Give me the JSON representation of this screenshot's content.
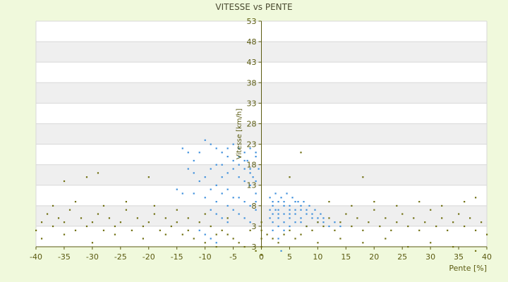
{
  "chart_data": {
    "type": "scatter",
    "title": "VITESSE vs PENTE",
    "xlabel": "Pente [%]",
    "ylabel": "Vitesse [km/h]",
    "xlim": [
      -40,
      40
    ],
    "ylim_labels_top_to_bottom": [
      "53",
      "48",
      "43",
      "38",
      "33",
      "28",
      "23",
      "18",
      "13",
      "8",
      "3",
      "3"
    ],
    "x_ticks": [
      -40,
      -35,
      -30,
      -25,
      -20,
      -15,
      -10,
      -5,
      0,
      5,
      10,
      15,
      20,
      25,
      30,
      35,
      40
    ],
    "grid": true,
    "alternating_bands": true,
    "colors": {
      "background": "#f0f9dc",
      "plot_band_light": "#ffffff",
      "plot_band_dark": "#efefef",
      "axis_text": "#5a5a10",
      "title_text": "#4a4a30",
      "series_blue": "#3d8fdc",
      "series_olive": "#6f6f10"
    },
    "series": [
      {
        "color": "#3d8fdc",
        "points": [
          [
            -14,
            27
          ],
          [
            -13,
            26
          ],
          [
            -12,
            24
          ],
          [
            -11,
            26
          ],
          [
            -10,
            29
          ],
          [
            -9,
            28
          ],
          [
            -8,
            27
          ],
          [
            -7,
            26
          ],
          [
            -6,
            27
          ],
          [
            -5,
            28
          ],
          [
            -4,
            27
          ],
          [
            -3,
            26
          ],
          [
            -2.5,
            24
          ],
          [
            -2,
            22
          ],
          [
            -1.5,
            20
          ],
          [
            -1,
            25
          ],
          [
            -0.5,
            22
          ],
          [
            -13,
            22
          ],
          [
            -12,
            21
          ],
          [
            -11,
            19
          ],
          [
            -10,
            20
          ],
          [
            -9,
            17
          ],
          [
            -8,
            18
          ],
          [
            -7,
            16
          ],
          [
            -6,
            17
          ],
          [
            -5,
            15
          ],
          [
            -4,
            15
          ],
          [
            -3,
            14
          ],
          [
            -2,
            13
          ],
          [
            -1,
            12
          ],
          [
            -9,
            12
          ],
          [
            -8,
            11
          ],
          [
            -7,
            10
          ],
          [
            -6,
            9
          ],
          [
            -5,
            12
          ],
          [
            -4,
            11
          ],
          [
            -3,
            10
          ],
          [
            -2,
            9
          ],
          [
            -1,
            16
          ],
          [
            -15,
            17
          ],
          [
            -14,
            16
          ],
          [
            -12,
            16
          ],
          [
            -10,
            15
          ],
          [
            -8,
            14
          ],
          [
            -6,
            13
          ],
          [
            -4,
            20
          ],
          [
            -3,
            19
          ],
          [
            -2,
            18
          ],
          [
            -1,
            14
          ],
          [
            -11,
            7
          ],
          [
            -10,
            6
          ],
          [
            -9,
            5
          ],
          [
            -8,
            4
          ],
          [
            -6,
            21
          ],
          [
            -5,
            22
          ],
          [
            -4,
            23
          ],
          [
            -3,
            22
          ],
          [
            -2,
            21
          ],
          [
            -1,
            19
          ],
          [
            -7,
            23
          ],
          [
            -6,
            25
          ],
          [
            -5,
            24
          ],
          [
            -4,
            25
          ],
          [
            -3,
            24
          ],
          [
            -2,
            27
          ],
          [
            -1,
            26
          ],
          [
            -9,
            22
          ],
          [
            -8,
            23
          ],
          [
            -7,
            20
          ],
          [
            2,
            11
          ],
          [
            2,
            14
          ],
          [
            2,
            13
          ],
          [
            3,
            10
          ],
          [
            3,
            12
          ],
          [
            3,
            11
          ],
          [
            3,
            14
          ],
          [
            4,
            9
          ],
          [
            4,
            11
          ],
          [
            4,
            13
          ],
          [
            4,
            14
          ],
          [
            5,
            8
          ],
          [
            5,
            10
          ],
          [
            5,
            12
          ],
          [
            5,
            13
          ],
          [
            6,
            9
          ],
          [
            6,
            11
          ],
          [
            6,
            12
          ],
          [
            6,
            14
          ],
          [
            7,
            9
          ],
          [
            7,
            10
          ],
          [
            7,
            12
          ],
          [
            7,
            13
          ],
          [
            8,
            8
          ],
          [
            8,
            11
          ],
          [
            8,
            12
          ],
          [
            9,
            10
          ],
          [
            9,
            11
          ],
          [
            10,
            9
          ],
          [
            10,
            10
          ],
          [
            11,
            10
          ],
          [
            11,
            9
          ],
          [
            12,
            8
          ],
          [
            13,
            9
          ],
          [
            14,
            8
          ],
          [
            1.5,
            15
          ],
          [
            2.5,
            16
          ],
          [
            3.5,
            15
          ],
          [
            4.5,
            16
          ],
          [
            5.5,
            15
          ],
          [
            6.5,
            14
          ],
          [
            7.5,
            14
          ],
          [
            8.5,
            13
          ],
          [
            9.5,
            12
          ],
          [
            10.5,
            11
          ],
          [
            2,
            9
          ],
          [
            3,
            8
          ],
          [
            4,
            7
          ],
          [
            3,
            5
          ],
          [
            3.5,
            2
          ],
          [
            2,
            7
          ],
          [
            1.5,
            12
          ],
          [
            1.5,
            10
          ],
          [
            2.5,
            12
          ],
          [
            5,
            11
          ]
        ]
      },
      {
        "color": "#6f6f10",
        "points": [
          [
            -40,
            7
          ],
          [
            -39,
            9
          ],
          [
            -38,
            11
          ],
          [
            -37,
            8
          ],
          [
            -36,
            10
          ],
          [
            -35,
            9
          ],
          [
            -34,
            12
          ],
          [
            -33,
            7
          ],
          [
            -32,
            10
          ],
          [
            -31,
            8
          ],
          [
            -30,
            9
          ],
          [
            -29,
            11
          ],
          [
            -28,
            7
          ],
          [
            -27,
            10
          ],
          [
            -26,
            8
          ],
          [
            -25,
            9
          ],
          [
            -24,
            12
          ],
          [
            -23,
            7
          ],
          [
            -22,
            10
          ],
          [
            -21,
            8
          ],
          [
            -20,
            9
          ],
          [
            -19,
            11
          ],
          [
            -18,
            7
          ],
          [
            -17,
            10
          ],
          [
            -16,
            8
          ],
          [
            -15,
            9
          ],
          [
            -14,
            6
          ],
          [
            -13,
            10
          ],
          [
            -12,
            5
          ],
          [
            -11,
            9
          ],
          [
            -10,
            4
          ],
          [
            -9,
            8
          ],
          [
            -8,
            3
          ],
          [
            -7,
            7
          ],
          [
            -6,
            6
          ],
          [
            -5,
            5
          ],
          [
            -4,
            4
          ],
          [
            -3,
            3
          ],
          [
            -2,
            7
          ],
          [
            -1,
            2
          ],
          [
            -37,
            13
          ],
          [
            -33,
            14
          ],
          [
            -28,
            13
          ],
          [
            -24,
            14
          ],
          [
            -19,
            13
          ],
          [
            -15,
            12
          ],
          [
            -10,
            11
          ],
          [
            -6,
            10
          ],
          [
            -39,
            5
          ],
          [
            -35,
            6
          ],
          [
            -30,
            4
          ],
          [
            -26,
            6
          ],
          [
            -21,
            5
          ],
          [
            -17,
            6
          ],
          [
            -13,
            7
          ],
          [
            -8,
            6
          ],
          [
            -31,
            20
          ],
          [
            -29,
            21
          ],
          [
            -35,
            19
          ],
          [
            -20,
            20
          ],
          [
            0,
            1
          ],
          [
            0,
            3
          ],
          [
            0,
            5
          ],
          [
            0,
            7
          ],
          [
            0,
            9
          ],
          [
            1,
            6
          ],
          [
            2,
            5
          ],
          [
            3,
            4
          ],
          [
            4,
            6
          ],
          [
            5,
            7
          ],
          [
            6,
            5
          ],
          [
            7,
            6
          ],
          [
            8,
            8
          ],
          [
            9,
            7
          ],
          [
            10,
            9
          ],
          [
            11,
            8
          ],
          [
            12,
            10
          ],
          [
            13,
            7
          ],
          [
            14,
            9
          ],
          [
            15,
            11
          ],
          [
            16,
            8
          ],
          [
            17,
            10
          ],
          [
            18,
            7
          ],
          [
            19,
            9
          ],
          [
            20,
            12
          ],
          [
            21,
            8
          ],
          [
            22,
            10
          ],
          [
            23,
            7
          ],
          [
            24,
            9
          ],
          [
            25,
            11
          ],
          [
            26,
            8
          ],
          [
            27,
            10
          ],
          [
            28,
            7
          ],
          [
            29,
            9
          ],
          [
            30,
            12
          ],
          [
            31,
            8
          ],
          [
            32,
            10
          ],
          [
            33,
            7
          ],
          [
            34,
            9
          ],
          [
            35,
            11
          ],
          [
            36,
            8
          ],
          [
            37,
            10
          ],
          [
            38,
            7
          ],
          [
            39,
            9
          ],
          [
            40,
            6
          ],
          [
            12,
            14
          ],
          [
            16,
            13
          ],
          [
            20,
            14
          ],
          [
            24,
            13
          ],
          [
            28,
            14
          ],
          [
            32,
            13
          ],
          [
            36,
            14
          ],
          [
            38,
            15
          ],
          [
            10,
            4
          ],
          [
            14,
            5
          ],
          [
            18,
            4
          ],
          [
            22,
            5
          ],
          [
            26,
            3
          ],
          [
            30,
            4
          ],
          [
            34,
            3
          ],
          [
            38,
            2
          ],
          [
            5,
            20
          ],
          [
            18,
            20
          ],
          [
            7,
            26
          ]
        ]
      }
    ]
  }
}
